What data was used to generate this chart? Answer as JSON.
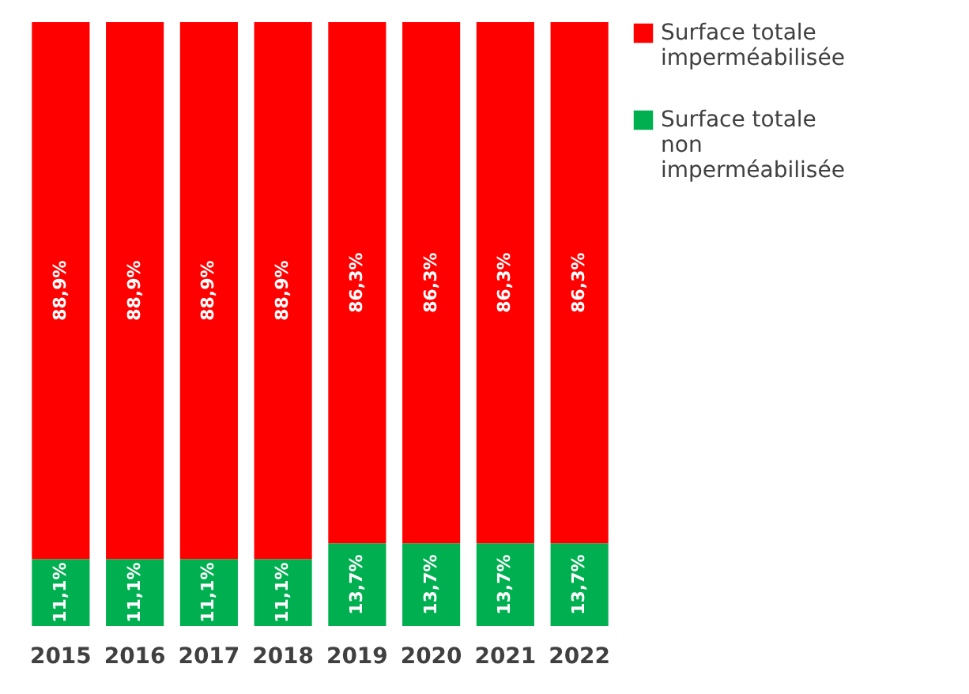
{
  "chart_data": {
    "type": "bar",
    "stacked": true,
    "categories": [
      "2015",
      "2016",
      "2017",
      "2018",
      "2019",
      "2020",
      "2021",
      "2022"
    ],
    "series": [
      {
        "name": "Surface totale non imperméabilisée",
        "color": "#00b050",
        "values": [
          11.1,
          11.1,
          11.1,
          11.1,
          13.7,
          13.7,
          13.7,
          13.7
        ],
        "value_labels": [
          "11,1%",
          "11,1%",
          "11,1%",
          "11,1%",
          "13,7%",
          "13,7%",
          "13,7%",
          "13,7%"
        ]
      },
      {
        "name": "Surface totale imperméabilisée",
        "color": "#ff0000",
        "values": [
          88.9,
          88.9,
          88.9,
          88.9,
          86.3,
          86.3,
          86.3,
          86.3
        ],
        "value_labels": [
          "88,9%",
          "88,9%",
          "88,9%",
          "88,9%",
          "86,3%",
          "86,3%",
          "86,3%",
          "86,3%"
        ]
      }
    ],
    "legend": "right",
    "grid": false
  }
}
